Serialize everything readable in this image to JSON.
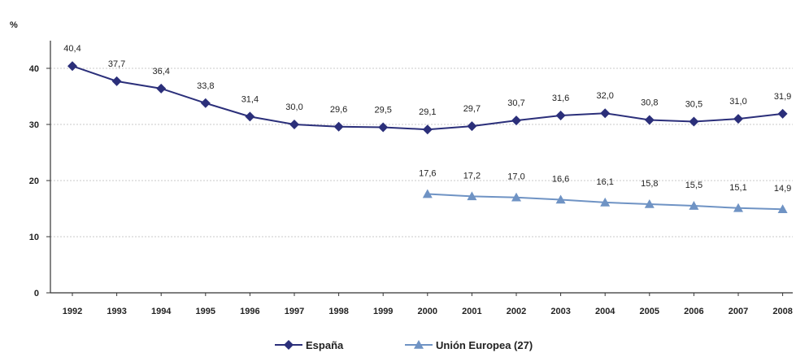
{
  "chart_data": {
    "type": "line",
    "unit_label": "%",
    "categories": [
      "1992",
      "1993",
      "1994",
      "1995",
      "1996",
      "1997",
      "1998",
      "1999",
      "2000",
      "2001",
      "2002",
      "2003",
      "2004",
      "2005",
      "2006",
      "2007",
      "2008"
    ],
    "ylim": [
      0,
      40
    ],
    "yticks": [
      0,
      10,
      20,
      30,
      40
    ],
    "grid": true,
    "legend_position": "bottom",
    "series": [
      {
        "name": "España",
        "marker": "diamond",
        "color": "#2b2f7a",
        "values": [
          40.4,
          37.7,
          36.4,
          33.8,
          31.4,
          30.0,
          29.6,
          29.5,
          29.1,
          29.7,
          30.7,
          31.6,
          32.0,
          30.8,
          30.5,
          31.0,
          31.9
        ],
        "labels": [
          "40,4",
          "37,7",
          "36,4",
          "33,8",
          "31,4",
          "30,0",
          "29,6",
          "29,5",
          "29,1",
          "29,7",
          "30,7",
          "31,6",
          "32,0",
          "30,8",
          "30,5",
          "31,0",
          "31,9"
        ]
      },
      {
        "name": "Unión Europea (27)",
        "marker": "triangle",
        "color": "#6f93c4",
        "values": [
          null,
          null,
          null,
          null,
          null,
          null,
          null,
          null,
          17.6,
          17.2,
          17.0,
          16.6,
          16.1,
          15.8,
          15.5,
          15.1,
          14.9
        ],
        "labels": [
          null,
          null,
          null,
          null,
          null,
          null,
          null,
          null,
          "17,6",
          "17,2",
          "17,0",
          "16,6",
          "16,1",
          "15,8",
          "15,5",
          "15,1",
          "14,9"
        ]
      }
    ]
  }
}
